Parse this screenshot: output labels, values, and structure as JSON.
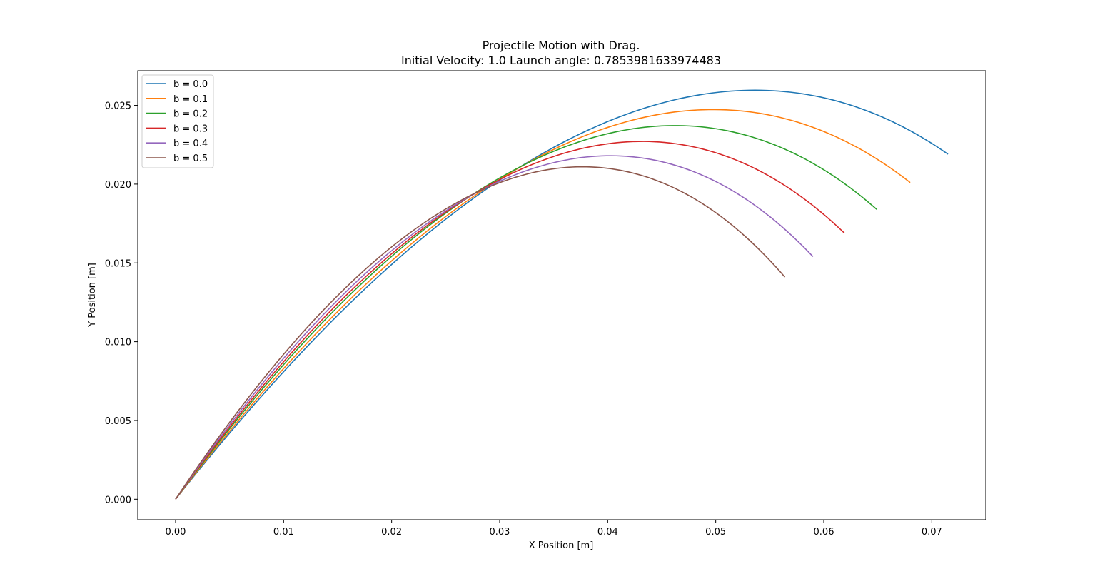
{
  "chart_data": {
    "type": "line",
    "title": "Projectile Motion with Drag.",
    "subtitle": "Initial Velocity: 1.0 Launch angle: 0.7853981633974483",
    "xlabel": "X Position [m]",
    "ylabel": "Y Position [m]",
    "xlim": [
      -0.0035,
      0.075
    ],
    "ylim": [
      -0.0013,
      0.0272
    ],
    "xticks": [
      0.0,
      0.01,
      0.02,
      0.03,
      0.04,
      0.05,
      0.06,
      0.07
    ],
    "xtick_labels": [
      "0.00",
      "0.01",
      "0.02",
      "0.03",
      "0.04",
      "0.05",
      "0.06",
      "0.07"
    ],
    "yticks": [
      0.0,
      0.005,
      0.01,
      0.015,
      0.02,
      0.025
    ],
    "ytick_labels": [
      "0.000",
      "0.005",
      "0.010",
      "0.015",
      "0.020",
      "0.025"
    ],
    "grid": false,
    "legend_position": "top-left",
    "series": [
      {
        "name": "b = 0.0",
        "color": "#1f77b4",
        "x_end": 0.0715,
        "y_end": 0.0219,
        "x_peak": 0.0513,
        "y_peak": 0.0259
      },
      {
        "name": "b = 0.1",
        "color": "#ff7f0e",
        "x_end": 0.068,
        "y_end": 0.0201,
        "x_peak": 0.0481,
        "y_peak": 0.0247
      },
      {
        "name": "b = 0.2",
        "color": "#2ca02c",
        "x_end": 0.0649,
        "y_end": 0.0184,
        "x_peak": 0.0451,
        "y_peak": 0.0237
      },
      {
        "name": "b = 0.3",
        "color": "#d62728",
        "x_end": 0.0619,
        "y_end": 0.0169,
        "x_peak": 0.0424,
        "y_peak": 0.0227
      },
      {
        "name": "b = 0.4",
        "color": "#9467bd",
        "x_end": 0.059,
        "y_end": 0.0154,
        "x_peak": 0.04,
        "y_peak": 0.0218
      },
      {
        "name": "b = 0.5",
        "color": "#8c564b",
        "x_end": 0.0564,
        "y_end": 0.0141,
        "x_peak": 0.0378,
        "y_peak": 0.0211
      }
    ]
  }
}
